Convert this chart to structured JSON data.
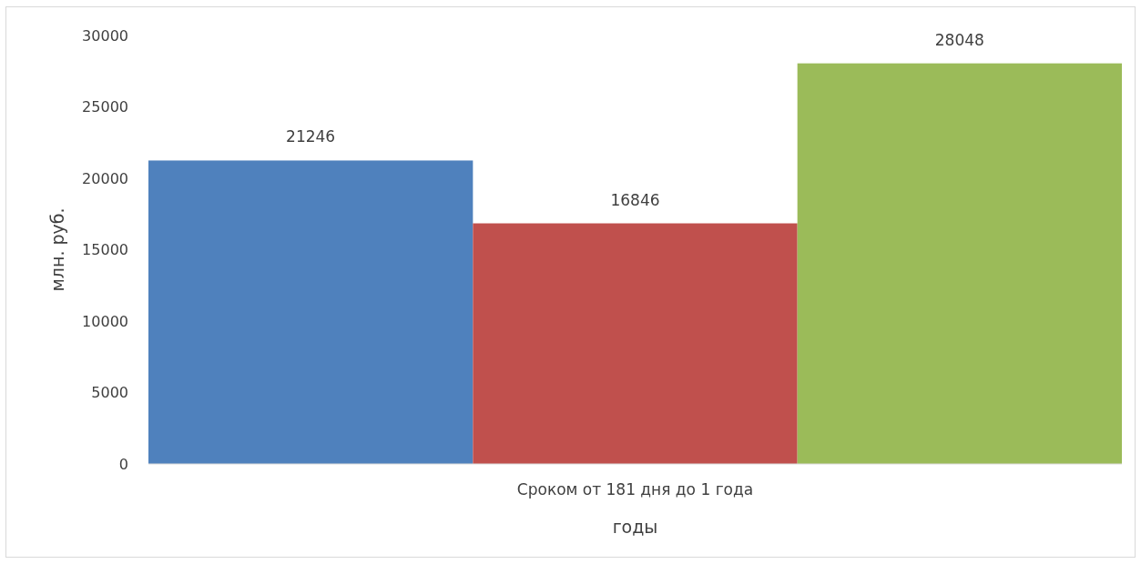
{
  "chart_data": {
    "type": "bar",
    "xlabel": "годы",
    "ylabel": "млн. руб.",
    "categories": [
      "Сроком от 181 дня до 1 года"
    ],
    "series": [
      {
        "color": "#4f81bd",
        "values": [
          21246
        ]
      },
      {
        "color": "#c0504d",
        "values": [
          16846
        ]
      },
      {
        "color": "#9bbb59",
        "values": [
          28048
        ]
      }
    ],
    "ylim": [
      0,
      30000
    ],
    "yticks": [
      0,
      5000,
      10000,
      15000,
      20000,
      25000,
      30000
    ],
    "grid": false,
    "data_labels": true
  }
}
